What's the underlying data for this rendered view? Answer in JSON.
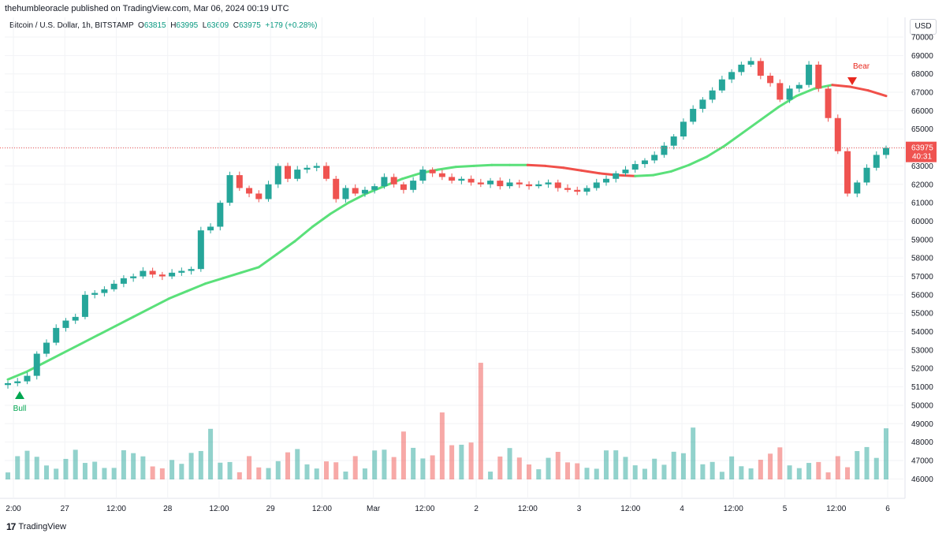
{
  "header": {
    "publisher_line": "thehumbleoracle published on TradingView.com, Mar 06, 2024 00:19 UTC"
  },
  "legend": {
    "symbol": "Bitcoin / U.S. Dollar, 1h, BITSTAMP",
    "open_label": "O",
    "open": "63815",
    "high_label": "H",
    "high": "63995",
    "low_label": "L",
    "low": "63609",
    "close_label": "C",
    "close": "63975",
    "change": "+179 (+0.28%)"
  },
  "currency_button": "USD",
  "price_tag": {
    "price": "63975",
    "countdown": "40:31"
  },
  "footer": {
    "brand": "TradingView",
    "logo_glyph": "17"
  },
  "colors": {
    "up": "#26a69a",
    "down": "#ef5350",
    "ma_up": "#5ae07a",
    "ma_down": "#f0504a",
    "last_line": "#ef5350"
  },
  "chart_data": {
    "type": "candlestick",
    "title": "Bitcoin / U.S. Dollar, 1h, BITSTAMP",
    "y_axis": {
      "range": [
        45800,
        70300
      ],
      "ticks": [
        46000,
        47000,
        48000,
        49000,
        50000,
        51000,
        52000,
        53000,
        54000,
        55000,
        56000,
        57000,
        58000,
        59000,
        60000,
        61000,
        62000,
        63000,
        64000,
        65000,
        66000,
        67000,
        68000,
        69000,
        70000
      ]
    },
    "x_axis": {
      "ticks": [
        "2:00",
        "27",
        "12:00",
        "28",
        "12:00",
        "29",
        "12:00",
        "Mar",
        "12:00",
        "2",
        "12:00",
        "3",
        "12:00",
        "4",
        "12:00",
        "5",
        "12:00",
        "6"
      ]
    },
    "last_price": 63975,
    "signals": [
      {
        "label": "Bull",
        "direction": "up",
        "price": 51300
      },
      {
        "label": "Bear",
        "direction": "down",
        "price": 67700
      }
    ],
    "price_path": [
      51200,
      51300,
      51600,
      52800,
      53400,
      54200,
      54600,
      54800,
      56000,
      56100,
      56300,
      56600,
      56900,
      57000,
      57300,
      57100,
      57000,
      57200,
      57300,
      57400,
      59500,
      59700,
      61000,
      62500,
      61800,
      61500,
      61200,
      62000,
      63000,
      62300,
      62800,
      62900,
      63000,
      62300,
      61200,
      61800,
      61500,
      61700,
      61900,
      62400,
      62000,
      61700,
      62200,
      62800,
      62600,
      62400,
      62200,
      62300,
      62100,
      62000,
      62200,
      61900,
      62100,
      62000,
      61900,
      62000,
      62100,
      61800,
      61700,
      61600,
      61800,
      62100,
      62300,
      62600,
      62800,
      63100,
      63300,
      63600,
      64100,
      64600,
      65400,
      66100,
      66600,
      67100,
      67700,
      68100,
      68500,
      68700,
      67900,
      67500,
      66600,
      67200,
      67400,
      68500,
      67200,
      65600,
      63800,
      61500,
      62100,
      62900,
      63600,
      63975
    ],
    "ma_path": [
      51400,
      51800,
      52300,
      52800,
      53300,
      53800,
      54300,
      54800,
      55300,
      55800,
      56200,
      56600,
      56900,
      57200,
      57500,
      58200,
      58900,
      59700,
      60400,
      61000,
      61500,
      61900,
      62300,
      62600,
      62800,
      62950,
      63000,
      63050,
      63050,
      63050,
      63000,
      62900,
      62750,
      62600,
      62500,
      62450,
      62500,
      62700,
      63050,
      63500,
      64100,
      64800,
      65500,
      66200,
      66800,
      67200,
      67400,
      67300,
      67100,
      66800
    ],
    "volume_relative": [
      0.1,
      0.2,
      0.35,
      0.2,
      0.15,
      0.1,
      0.2,
      0.3,
      0.15,
      0.2,
      0.1,
      0.15,
      0.25,
      0.35,
      0.2,
      0.15,
      0.1,
      0.2,
      0.15,
      0.25,
      0.3,
      0.45,
      0.2,
      0.15,
      0.1,
      0.2,
      0.15,
      0.1,
      0.2,
      0.25,
      0.3,
      0.15,
      0.1,
      0.2,
      0.15,
      0.1,
      0.2,
      0.15,
      0.25,
      0.35,
      0.2,
      0.5,
      0.3,
      0.2,
      0.25,
      0.6,
      0.4,
      0.3,
      0.5,
      1.0
    ]
  }
}
